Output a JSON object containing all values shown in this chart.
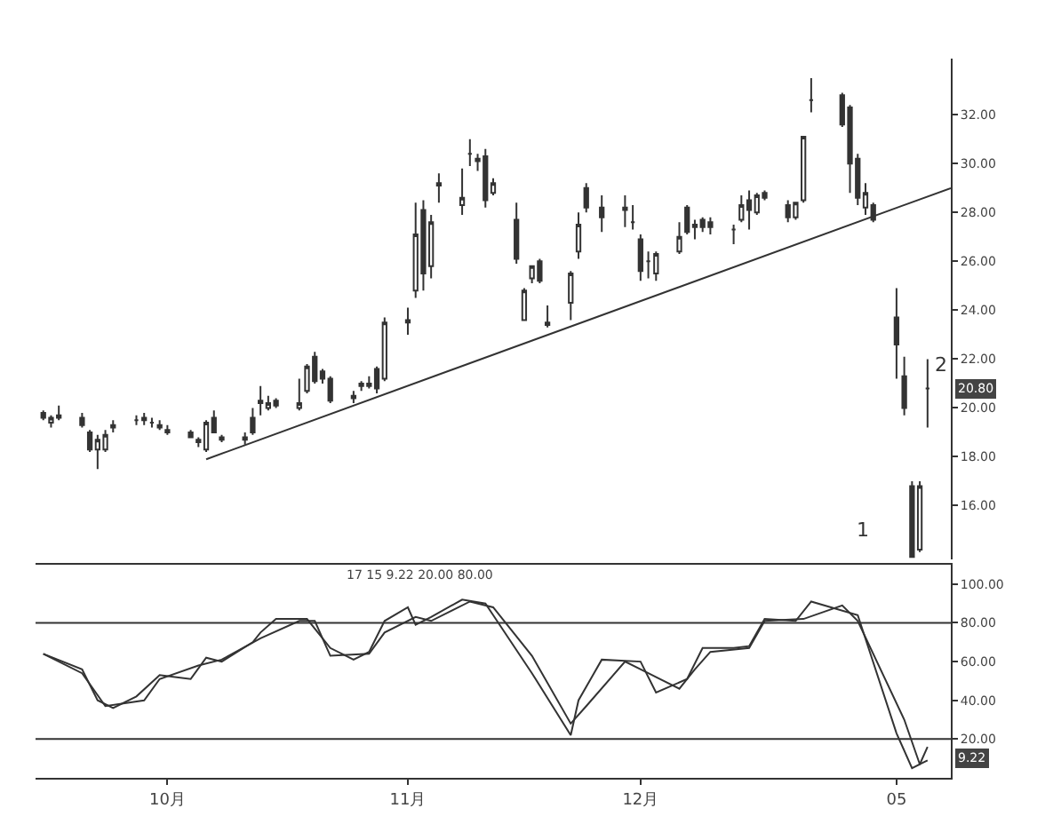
{
  "chart_data": [
    {
      "type": "candlestick",
      "tick_labels": "y",
      "x": [
        "2004-09-15",
        "2004-09-16",
        "2004-09-17",
        "2004-09-20",
        "2004-09-21",
        "2004-09-22",
        "2004-09-23",
        "2004-09-24",
        "2004-09-27",
        "2004-09-28",
        "2004-09-29",
        "2004-09-30",
        "2004-10-01",
        "2004-10-04",
        "2004-10-05",
        "2004-10-06",
        "2004-10-07",
        "2004-10-08",
        "2004-10-11",
        "2004-10-12",
        "2004-10-13",
        "2004-10-14",
        "2004-10-15",
        "2004-10-18",
        "2004-10-19",
        "2004-10-20",
        "2004-10-21",
        "2004-10-22",
        "2004-10-25",
        "2004-10-26",
        "2004-10-27",
        "2004-10-28",
        "2004-10-29",
        "2004-11-01",
        "2004-11-02",
        "2004-11-03",
        "2004-11-04",
        "2004-11-05",
        "2004-11-08",
        "2004-11-09",
        "2004-11-10",
        "2004-11-11",
        "2004-11-12",
        "2004-11-15",
        "2004-11-16",
        "2004-11-17",
        "2004-11-18",
        "2004-11-19",
        "2004-11-22",
        "2004-11-23",
        "2004-11-24",
        "2004-11-26",
        "2004-11-29",
        "2004-11-30",
        "2004-12-01",
        "2004-12-02",
        "2004-12-03",
        "2004-12-06",
        "2004-12-07",
        "2004-12-08",
        "2004-12-09",
        "2004-12-10",
        "2004-12-13",
        "2004-12-14",
        "2004-12-15",
        "2004-12-16",
        "2004-12-17",
        "2004-12-20",
        "2004-12-21",
        "2004-12-22",
        "2004-12-23",
        "2004-12-27",
        "2004-12-28",
        "2004-12-29",
        "2004-12-30",
        "2004-12-31",
        "2005-01-03",
        "2005-01-04",
        "2005-01-05",
        "2005-01-06",
        "2005-01-07"
      ],
      "ohlc": [
        [
          19.8,
          19.9,
          19.5,
          19.6
        ],
        [
          19.4,
          19.7,
          19.2,
          19.6
        ],
        [
          19.7,
          20.1,
          19.5,
          19.6
        ],
        [
          19.6,
          19.8,
          19.2,
          19.3
        ],
        [
          19.0,
          19.1,
          18.2,
          18.3
        ],
        [
          18.3,
          18.9,
          17.5,
          18.7
        ],
        [
          18.3,
          19.1,
          18.2,
          18.9
        ],
        [
          19.2,
          19.5,
          19.0,
          19.3
        ],
        [
          19.5,
          19.7,
          19.3,
          19.5
        ],
        [
          19.5,
          19.8,
          19.3,
          19.6
        ],
        [
          19.4,
          19.6,
          19.2,
          19.4
        ],
        [
          19.3,
          19.5,
          19.1,
          19.2
        ],
        [
          19.1,
          19.3,
          18.9,
          19.0
        ],
        [
          19.0,
          19.1,
          18.8,
          18.8
        ],
        [
          18.7,
          18.8,
          18.4,
          18.6
        ],
        [
          18.3,
          19.5,
          18.2,
          19.4
        ],
        [
          19.6,
          19.9,
          19.0,
          19.0
        ],
        [
          18.8,
          18.9,
          18.6,
          18.7
        ],
        [
          18.7,
          19.0,
          18.5,
          18.8
        ],
        [
          19.6,
          20.0,
          18.9,
          19.0
        ],
        [
          20.2,
          20.9,
          19.7,
          20.3
        ],
        [
          20.0,
          20.5,
          19.9,
          20.2
        ],
        [
          20.3,
          20.4,
          20.0,
          20.1
        ],
        [
          20.0,
          21.2,
          19.9,
          20.2
        ],
        [
          20.7,
          21.8,
          20.6,
          21.7
        ],
        [
          22.1,
          22.3,
          21.0,
          21.1
        ],
        [
          21.5,
          21.6,
          21.0,
          21.2
        ],
        [
          21.2,
          21.3,
          20.2,
          20.3
        ],
        [
          20.4,
          20.7,
          20.2,
          20.5
        ],
        [
          20.9,
          21.1,
          20.7,
          21.0
        ],
        [
          21.0,
          21.3,
          20.8,
          20.9
        ],
        [
          21.6,
          21.7,
          20.6,
          20.8
        ],
        [
          21.2,
          23.7,
          21.1,
          23.5
        ],
        [
          23.5,
          24.1,
          23.0,
          23.6
        ],
        [
          24.8,
          28.4,
          24.5,
          27.1
        ],
        [
          28.1,
          28.5,
          24.8,
          25.5
        ],
        [
          25.8,
          27.9,
          25.3,
          27.6
        ],
        [
          29.1,
          29.6,
          28.4,
          29.2
        ],
        [
          28.3,
          29.8,
          27.9,
          28.6
        ],
        [
          30.4,
          31.0,
          29.9,
          30.4
        ],
        [
          30.1,
          30.4,
          29.7,
          30.2
        ],
        [
          30.3,
          30.6,
          28.2,
          28.5
        ],
        [
          28.8,
          29.4,
          28.7,
          29.2
        ],
        [
          27.7,
          28.4,
          25.9,
          26.1
        ],
        [
          23.6,
          24.9,
          23.6,
          24.8
        ],
        [
          25.3,
          25.8,
          25.1,
          25.8
        ],
        [
          26.0,
          26.1,
          25.1,
          25.2
        ],
        [
          23.4,
          24.2,
          23.3,
          23.5
        ],
        [
          24.3,
          25.6,
          23.6,
          25.5
        ],
        [
          26.4,
          28.0,
          26.1,
          27.5
        ],
        [
          29.0,
          29.2,
          28.0,
          28.2
        ],
        [
          28.2,
          28.7,
          27.2,
          27.8
        ],
        [
          28.1,
          28.7,
          27.4,
          28.2
        ],
        [
          27.6,
          28.3,
          27.3,
          27.6
        ],
        [
          26.9,
          27.1,
          25.2,
          25.6
        ],
        [
          26.0,
          26.4,
          25.3,
          26.0
        ],
        [
          25.5,
          26.4,
          25.2,
          26.3
        ],
        [
          26.4,
          27.6,
          26.3,
          27.0
        ],
        [
          28.2,
          28.3,
          27.1,
          27.2
        ],
        [
          27.4,
          27.7,
          26.9,
          27.5
        ],
        [
          27.7,
          27.8,
          27.2,
          27.4
        ],
        [
          27.6,
          27.8,
          27.1,
          27.4
        ],
        [
          27.3,
          27.5,
          26.7,
          27.3
        ],
        [
          27.7,
          28.7,
          27.6,
          28.3
        ],
        [
          28.5,
          28.9,
          27.3,
          28.1
        ],
        [
          28.0,
          28.8,
          27.9,
          28.7
        ],
        [
          28.8,
          28.9,
          28.5,
          28.6
        ],
        [
          28.3,
          28.5,
          27.6,
          27.8
        ],
        [
          27.8,
          28.4,
          27.7,
          28.4
        ],
        [
          28.5,
          31.1,
          28.4,
          31.1
        ],
        [
          32.6,
          33.5,
          32.1,
          32.6
        ],
        [
          32.8,
          32.9,
          31.5,
          31.6
        ],
        [
          32.3,
          32.4,
          28.8,
          30.0
        ],
        [
          30.2,
          30.4,
          28.3,
          28.6
        ],
        [
          28.2,
          29.2,
          27.9,
          28.8
        ],
        [
          28.3,
          28.4,
          27.6,
          27.7
        ],
        [
          23.7,
          24.9,
          21.2,
          22.6
        ],
        [
          21.3,
          22.1,
          19.7,
          20.0
        ],
        [
          16.8,
          17.0,
          13.9,
          13.9
        ],
        [
          14.2,
          17.0,
          14.1,
          16.8
        ],
        [
          20.8,
          22.0,
          19.2,
          20.8
        ]
      ],
      "series": [
        {
          "type": "line",
          "color": "#333333",
          "x": [
            "2004-10-06",
            "2005-01-10"
          ],
          "values": [
            17.9,
            29.0
          ]
        }
      ],
      "xlim": [
        "2004-09-14",
        "2005-01-10"
      ],
      "ylim": [
        13.8,
        34.3
      ],
      "yticks": [
        {
          "value": 16,
          "label": "16.00"
        },
        {
          "value": 18,
          "label": "18.00"
        },
        {
          "value": 20,
          "label": "20.00"
        },
        {
          "value": 22,
          "label": "22.00"
        },
        {
          "value": 24,
          "label": "24.00"
        },
        {
          "value": 26,
          "label": "26.00"
        },
        {
          "value": 28,
          "label": "28.00"
        },
        {
          "value": 30,
          "label": "30.00"
        },
        {
          "value": 32,
          "label": "32.00"
        }
      ],
      "annotations": [
        "1",
        "2",
        "20.80"
      ]
    },
    {
      "type": "line",
      "series": [
        {
          "color": "#333333",
          "x": [
            "2004-09-15",
            "2004-09-20",
            "2004-09-22",
            "2004-09-24",
            "2004-09-27",
            "2004-09-30",
            "2004-10-04",
            "2004-10-06",
            "2004-10-08",
            "2004-10-12",
            "2004-10-13",
            "2004-10-15",
            "2004-10-19",
            "2004-10-22",
            "2004-10-25",
            "2004-10-27",
            "2004-10-29",
            "2004-11-01",
            "2004-11-02",
            "2004-11-04",
            "2004-11-08",
            "2004-11-11",
            "2004-11-12",
            "2004-11-17",
            "2004-11-22",
            "2004-11-23",
            "2004-11-26",
            "2004-12-01",
            "2004-12-03",
            "2004-12-07",
            "2004-12-09",
            "2004-12-13",
            "2004-12-15",
            "2004-12-17",
            "2004-12-21",
            "2004-12-23",
            "2004-12-29",
            "2005-01-03",
            "2005-01-05",
            "2005-01-06",
            "2005-01-07"
          ],
          "values": [
            64,
            56,
            40,
            36,
            42,
            53,
            51,
            62,
            60,
            70,
            75,
            82,
            82,
            67,
            61,
            65,
            81,
            88,
            79,
            83,
            92,
            90,
            84,
            54,
            22,
            40,
            61,
            60,
            44,
            51,
            67,
            67,
            68,
            82,
            81,
            91,
            84,
            23,
            5,
            7,
            16
          ]
        },
        {
          "color": "#333333",
          "x": [
            "2004-09-15",
            "2004-09-20",
            "2004-09-23",
            "2004-09-28",
            "2004-09-30",
            "2004-10-05",
            "2004-10-08",
            "2004-10-13",
            "2004-10-18",
            "2004-10-20",
            "2004-10-22",
            "2004-10-27",
            "2004-10-29",
            "2004-11-02",
            "2004-11-04",
            "2004-11-09",
            "2004-11-12",
            "2004-11-17",
            "2004-11-22",
            "2004-11-24",
            "2004-11-29",
            "2004-12-02",
            "2004-12-06",
            "2004-12-08",
            "2004-12-10",
            "2004-12-15",
            "2004-12-17",
            "2004-12-22",
            "2004-12-27",
            "2004-12-29",
            "2005-01-04",
            "2005-01-06",
            "2005-01-07"
          ],
          "values": [
            64,
            54,
            37,
            40,
            51,
            58,
            61,
            72,
            81,
            81,
            63,
            64,
            75,
            83,
            81,
            91,
            88,
            63,
            28,
            37,
            60,
            54,
            46,
            56,
            65,
            67,
            81,
            82,
            89,
            81,
            30,
            7,
            9
          ]
        }
      ],
      "ref_lines": [
        {
          "axis": "y",
          "value": 80
        },
        {
          "axis": "y",
          "value": 20
        }
      ],
      "xlim": [
        "2004-09-14",
        "2005-01-10"
      ],
      "xticks": [
        {
          "value": "2004-10-01",
          "label": "10月"
        },
        {
          "value": "2004-11-01",
          "label": "11月"
        },
        {
          "value": "2004-12-01",
          "label": "12月"
        },
        {
          "value": "2005-01-03",
          "label": "05"
        }
      ],
      "ylim": [
        0,
        110
      ],
      "yticks": [
        {
          "value": 20,
          "label": "20.00"
        },
        {
          "value": 40,
          "label": "40.00"
        },
        {
          "value": 60,
          "label": "60.00"
        },
        {
          "value": 80,
          "label": "80.00"
        },
        {
          "value": 100,
          "label": "100.00"
        }
      ],
      "annotations": [
        "17 15 9.22 20.00 80.00",
        "9.22"
      ]
    }
  ]
}
